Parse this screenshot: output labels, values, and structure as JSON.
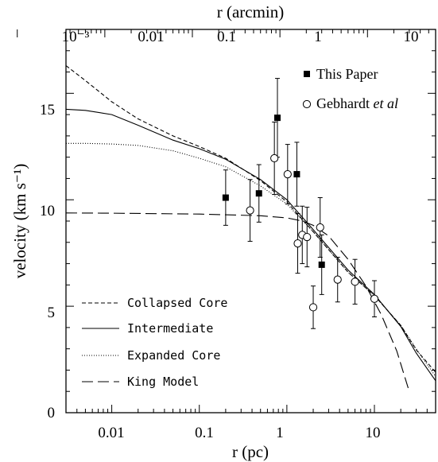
{
  "chart_data": {
    "type": "scatter",
    "xlabel": "r (pc)",
    "ylabel": "velocity (km s⁻¹)",
    "x2label": "r (arcmin)",
    "xscale": "log",
    "xlim": [
      0.003,
      50
    ],
    "ylim": [
      0,
      18
    ],
    "x_ticks": [
      0.01,
      0.1,
      1,
      10
    ],
    "x_tick_labels": [
      "0.01",
      "0.1",
      "1",
      "10"
    ],
    "y_ticks": [
      0,
      5,
      10,
      15
    ],
    "y_tick_labels": [
      "0",
      "5",
      "10",
      "15"
    ],
    "x2_ticks": [
      0.001,
      0.01,
      0.1,
      1,
      10
    ],
    "x2_tick_labels": [
      "10⁻³",
      "0.01",
      "0.1",
      "1",
      "10"
    ],
    "legend_points": [
      {
        "label": "This Paper",
        "marker": "filled-square"
      },
      {
        "label": "Gebhardt",
        "label_em": "et al",
        "marker": "open-circle"
      }
    ],
    "legend_lines": [
      {
        "label": "Collapsed Core",
        "dash": "short-dash"
      },
      {
        "label": "Intermediate",
        "dash": "solid"
      },
      {
        "label": "Expanded Core",
        "dash": "dotted"
      },
      {
        "label": "King Model",
        "dash": "long-dash"
      }
    ],
    "points": [
      {
        "x": 0.2,
        "y": 10.1,
        "lo": 8.8,
        "hi": 11.4
      },
      {
        "x": 0.48,
        "y": 10.3,
        "lo": 8.95,
        "hi": 11.65
      },
      {
        "x": 0.78,
        "y": 13.85,
        "lo": 12.0,
        "hi": 15.7
      },
      {
        "x": 1.3,
        "y": 11.2,
        "lo": 9.7,
        "hi": 12.7
      },
      {
        "x": 2.5,
        "y": 6.95,
        "lo": 5.55,
        "hi": 8.35
      }
    ],
    "gebhardt": [
      {
        "x": 0.38,
        "y": 9.5,
        "lo": 8.05,
        "hi": 10.95
      },
      {
        "x": 0.72,
        "y": 11.95,
        "lo": 10.25,
        "hi": 13.65
      },
      {
        "x": 1.02,
        "y": 11.2,
        "lo": 9.8,
        "hi": 12.6
      },
      {
        "x": 1.33,
        "y": 7.95,
        "lo": 6.55,
        "hi": 9.35
      },
      {
        "x": 1.5,
        "y": 8.35,
        "lo": 7.0,
        "hi": 9.7
      },
      {
        "x": 1.7,
        "y": 8.25,
        "lo": 6.85,
        "hi": 9.65
      },
      {
        "x": 2.0,
        "y": 4.95,
        "lo": 3.95,
        "hi": 5.95
      },
      {
        "x": 2.4,
        "y": 8.7,
        "lo": 7.3,
        "hi": 10.1
      },
      {
        "x": 3.8,
        "y": 6.25,
        "lo": 5.2,
        "hi": 7.3
      },
      {
        "x": 6.0,
        "y": 6.15,
        "lo": 5.1,
        "hi": 7.2
      },
      {
        "x": 10.0,
        "y": 5.35,
        "lo": 4.5,
        "hi": 6.2
      }
    ],
    "curves": [
      {
        "name": "Collapsed Core",
        "dash": "short-dash",
        "x": [
          0.003,
          0.005,
          0.01,
          0.02,
          0.05,
          0.1,
          0.2,
          0.5,
          1,
          2,
          5,
          10,
          20,
          30,
          50
        ],
        "y": [
          16.3,
          15.6,
          14.6,
          13.8,
          13.0,
          12.5,
          11.95,
          10.9,
          9.9,
          8.5,
          6.6,
          5.5,
          4.1,
          2.95,
          1.9
        ]
      },
      {
        "name": "Intermediate",
        "dash": "solid",
        "x": [
          0.003,
          0.005,
          0.01,
          0.02,
          0.05,
          0.1,
          0.2,
          0.5,
          1,
          2,
          5,
          10,
          20,
          30,
          50
        ],
        "y": [
          14.25,
          14.2,
          14.0,
          13.5,
          12.8,
          12.4,
          11.9,
          10.95,
          10.0,
          8.6,
          6.7,
          5.55,
          4.05,
          2.8,
          1.5
        ]
      },
      {
        "name": "Expanded Core",
        "dash": "dotted",
        "x": [
          0.003,
          0.005,
          0.01,
          0.02,
          0.05,
          0.1,
          0.2,
          0.5,
          1,
          2,
          5,
          10,
          20,
          30,
          50
        ],
        "y": [
          12.65,
          12.65,
          12.62,
          12.55,
          12.3,
          11.95,
          11.55,
          10.65,
          9.8,
          8.5,
          6.6,
          5.5,
          4.1,
          3.0,
          1.7
        ]
      },
      {
        "name": "King Model",
        "dash": "long-dash",
        "x": [
          0.003,
          0.01,
          0.1,
          0.5,
          1,
          1.5,
          2,
          3,
          5,
          8,
          12,
          18,
          25
        ],
        "y": [
          9.38,
          9.37,
          9.33,
          9.25,
          9.15,
          9.0,
          8.8,
          8.3,
          7.2,
          5.95,
          4.6,
          2.9,
          1.0
        ]
      }
    ]
  }
}
